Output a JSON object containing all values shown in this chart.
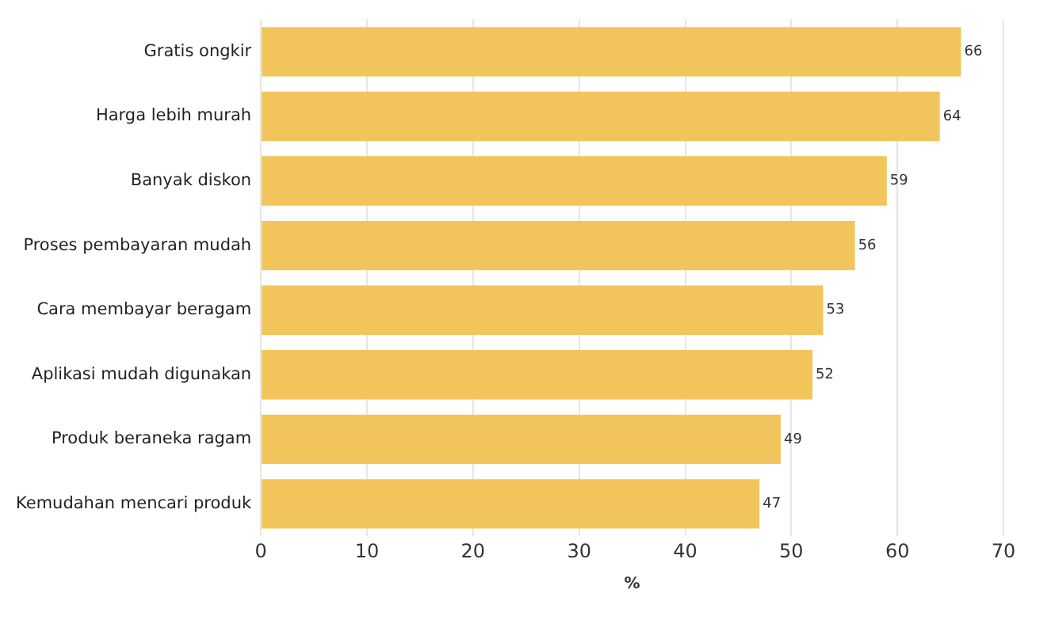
{
  "chart_data": {
    "type": "bar",
    "orientation": "horizontal",
    "xlabel": "%",
    "categories": [
      "Gratis ongkir",
      "Harga lebih murah",
      "Banyak diskon",
      "Proses pembayaran mudah",
      "Cara membayar beragam",
      "Aplikasi mudah digunakan",
      "Produk beraneka ragam",
      "Kemudahan mencari produk"
    ],
    "values": [
      66,
      64,
      59,
      56,
      53,
      52,
      49,
      47
    ],
    "color": "#f2c55c",
    "xlim": [
      0,
      70
    ],
    "xticks": [
      0,
      10,
      20,
      30,
      40,
      50,
      60,
      70
    ],
    "grid": "x",
    "data_labels": true,
    "legend": false
  }
}
